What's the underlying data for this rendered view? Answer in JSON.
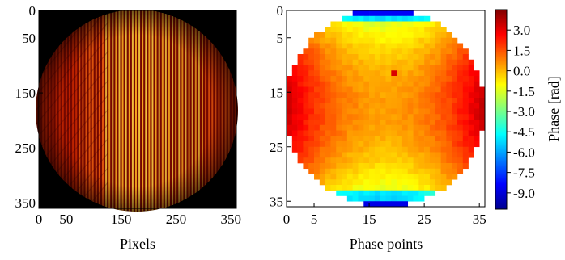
{
  "chart_data": [
    {
      "type": "heatmap",
      "title": "",
      "xlabel": "Pixels",
      "ylabel": "",
      "xlim": [
        0,
        360
      ],
      "ylim": [
        0,
        360
      ],
      "x_ticks": [
        0,
        50,
        150,
        250,
        350
      ],
      "y_ticks": [
        0,
        50,
        150,
        250,
        350
      ],
      "description": "Interference fringe pattern: vertical bright fringes inside a circular aperture, black outside",
      "colors": {
        "background": "#000000",
        "fringe_dark": "#5a0000",
        "fringe_mid": "#e02000",
        "fringe_bright": "#ffe060"
      }
    },
    {
      "type": "heatmap",
      "title": "",
      "xlabel": "Phase points",
      "ylabel": "",
      "xlim": [
        0,
        36
      ],
      "ylim": [
        0,
        36
      ],
      "x_ticks": [
        0,
        5,
        15,
        25,
        35
      ],
      "y_ticks": [
        0,
        5,
        15,
        25,
        35
      ],
      "colorbar": {
        "label": "Phase [rad]",
        "range": [
          -10.2,
          4.5
        ],
        "ticks": [
          3.0,
          1.5,
          0.0,
          -1.5,
          -3.0,
          -4.5,
          -6.0,
          -7.5,
          -9.0
        ],
        "tick_labels": [
          "3.0",
          "1.5",
          "0.0",
          "-1.5",
          "-3.0",
          "-4.5",
          "-6.0",
          "-7.5",
          "-9.0"
        ],
        "colormap": "jet"
      }
    }
  ]
}
